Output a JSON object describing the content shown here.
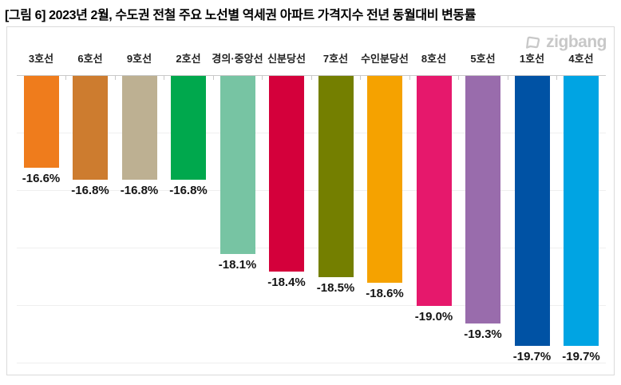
{
  "figure": {
    "title": "[그림 6] 2023년 2월, 수도권 전철 주요 노선별 역세권 아파트 가격지수 전년 동월대비 변동률"
  },
  "logo": {
    "text": "zigbang",
    "color": "#c8c8c8"
  },
  "chart_data": {
    "type": "bar",
    "title": "[그림 6] 2023년 2월, 수도권 전철 주요 노선별 역세권 아파트 가격지수 전년 동월대비 변동률",
    "unit": "%",
    "orientation": "vertical bars hanging downward from top baseline (all values negative)",
    "baseline_value": -15,
    "ylim": [
      -20.3,
      -15
    ],
    "gridline_values": [
      -16,
      -17,
      -18,
      -19,
      -20
    ],
    "grid": true,
    "legend": false,
    "categories": [
      "3호선",
      "6호선",
      "9호선",
      "2호선",
      "경의·중앙선",
      "신분당선",
      "7호선",
      "수인분당선",
      "8호선",
      "5호선",
      "1호선",
      "4호선"
    ],
    "values": [
      -16.6,
      -16.8,
      -16.8,
      -16.8,
      -18.1,
      -18.4,
      -18.5,
      -18.6,
      -19.0,
      -19.3,
      -19.7,
      -19.7
    ],
    "data_labels": [
      "-16.6%",
      "-16.8%",
      "-16.8%",
      "-16.8%",
      "-18.1%",
      "-18.4%",
      "-18.5%",
      "-18.6%",
      "-19.0%",
      "-19.3%",
      "-19.7%",
      "-19.7%"
    ],
    "bar_colors": [
      "#EF7C1C",
      "#CD7C2F",
      "#BDB092",
      "#00A84D",
      "#77C4A3",
      "#D4003B",
      "#747F00",
      "#F5A200",
      "#E6186C",
      "#996CAC",
      "#0052A4",
      "#00A4E3"
    ]
  }
}
